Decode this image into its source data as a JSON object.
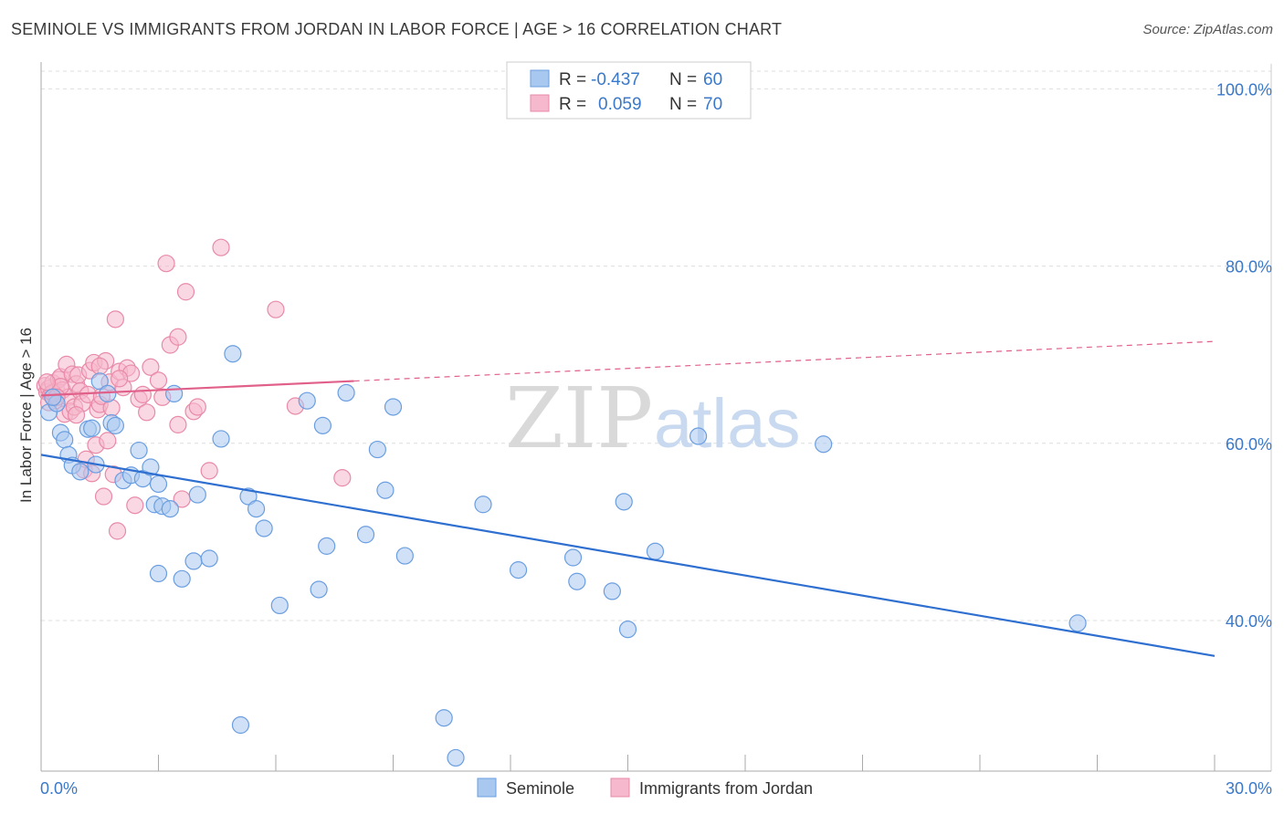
{
  "title": "SEMINOLE VS IMMIGRANTS FROM JORDAN IN LABOR FORCE | AGE > 16 CORRELATION CHART",
  "source": "Source: ZipAtlas.com",
  "watermark": {
    "zip": "ZIP",
    "atlas": "atlas"
  },
  "colors": {
    "blue_fill": "#a9c8f0",
    "blue_stroke": "#6a9ee0",
    "blue_line": "#2e6fd0",
    "pink_fill": "#f6b8cc",
    "pink_stroke": "#e88aa8",
    "pink_line": "#e0608a",
    "accent_text": "#3a78c9",
    "grid": "#dddddd"
  },
  "legend": {
    "rows": [
      {
        "r_label": "R =",
        "r_value": "-0.437",
        "n_label": "N =",
        "n_value": "60"
      },
      {
        "r_label": "R =",
        "r_value": "0.059",
        "n_label": "N =",
        "n_value": "70"
      }
    ]
  },
  "chart_data": {
    "type": "scatter",
    "title": "SEMINOLE VS IMMIGRANTS FROM JORDAN IN LABOR FORCE | AGE > 16 CORRELATION CHART",
    "xlabel": "",
    "ylabel": "In Labor Force | Age > 16",
    "xlim": [
      0,
      30
    ],
    "ylim": [
      23,
      102
    ],
    "x_tick_labels": [
      "0.0%",
      "30.0%"
    ],
    "y_ticks": [
      40,
      60,
      80,
      100
    ],
    "y_tick_labels": [
      "40.0%",
      "60.0%",
      "80.0%",
      "100.0%"
    ],
    "grid": true,
    "legend_position": "top-center",
    "series": [
      {
        "name": "Seminole",
        "color": "#a9c8f0",
        "trend": {
          "x": [
            0,
            30
          ],
          "y": [
            58.7,
            36.0
          ],
          "dashed_from": null
        },
        "points": [
          [
            0.2,
            63.5
          ],
          [
            0.4,
            64.5
          ],
          [
            0.5,
            61.2
          ],
          [
            0.6,
            60.4
          ],
          [
            0.7,
            58.7
          ],
          [
            0.8,
            57.5
          ],
          [
            1.0,
            56.8
          ],
          [
            1.2,
            61.6
          ],
          [
            1.3,
            61.7
          ],
          [
            1.4,
            57.6
          ],
          [
            1.5,
            67.0
          ],
          [
            1.7,
            65.6
          ],
          [
            1.8,
            62.3
          ],
          [
            1.9,
            62.0
          ],
          [
            2.1,
            55.8
          ],
          [
            2.3,
            56.4
          ],
          [
            2.5,
            59.2
          ],
          [
            2.6,
            56.0
          ],
          [
            2.8,
            57.3
          ],
          [
            2.9,
            53.1
          ],
          [
            3.0,
            45.3
          ],
          [
            3.0,
            55.4
          ],
          [
            3.1,
            52.9
          ],
          [
            3.3,
            52.6
          ],
          [
            3.4,
            65.6
          ],
          [
            3.6,
            44.7
          ],
          [
            3.9,
            46.7
          ],
          [
            4.0,
            54.2
          ],
          [
            4.3,
            47.0
          ],
          [
            4.6,
            60.5
          ],
          [
            4.9,
            70.1
          ],
          [
            5.1,
            28.2
          ],
          [
            5.3,
            54.0
          ],
          [
            5.5,
            52.6
          ],
          [
            5.7,
            50.4
          ],
          [
            6.1,
            41.7
          ],
          [
            6.8,
            64.8
          ],
          [
            7.1,
            43.5
          ],
          [
            7.2,
            62.0
          ],
          [
            7.3,
            48.4
          ],
          [
            7.8,
            65.7
          ],
          [
            8.3,
            49.7
          ],
          [
            8.6,
            59.3
          ],
          [
            8.8,
            54.7
          ],
          [
            9.0,
            64.1
          ],
          [
            9.3,
            47.3
          ],
          [
            10.3,
            29.0
          ],
          [
            10.6,
            24.5
          ],
          [
            11.3,
            53.1
          ],
          [
            12.2,
            45.7
          ],
          [
            13.6,
            47.1
          ],
          [
            13.7,
            44.4
          ],
          [
            14.6,
            43.3
          ],
          [
            14.9,
            53.4
          ],
          [
            15.0,
            39.0
          ],
          [
            15.7,
            47.8
          ],
          [
            16.8,
            60.8
          ],
          [
            20.0,
            59.9
          ],
          [
            26.5,
            39.7
          ],
          [
            0.3,
            65.2
          ]
        ]
      },
      {
        "name": "Immigrants from Jordan",
        "color": "#f6b8cc",
        "trend": {
          "x": [
            0,
            30
          ],
          "y": [
            65.4,
            71.5
          ],
          "dashed_from": 8.0
        },
        "points": [
          [
            0.1,
            66.5
          ],
          [
            0.15,
            65.8
          ],
          [
            0.2,
            66.2
          ],
          [
            0.25,
            65.5
          ],
          [
            0.3,
            66.8
          ],
          [
            0.35,
            64.8
          ],
          [
            0.4,
            65.9
          ],
          [
            0.45,
            67.2
          ],
          [
            0.5,
            67.5
          ],
          [
            0.55,
            66.0
          ],
          [
            0.6,
            63.3
          ],
          [
            0.65,
            68.9
          ],
          [
            0.7,
            65.2
          ],
          [
            0.75,
            63.6
          ],
          [
            0.8,
            67.8
          ],
          [
            0.85,
            64.1
          ],
          [
            0.9,
            66.7
          ],
          [
            0.95,
            67.7
          ],
          [
            1.0,
            65.9
          ],
          [
            1.05,
            64.5
          ],
          [
            1.1,
            57.0
          ],
          [
            1.15,
            58.2
          ],
          [
            1.2,
            65.5
          ],
          [
            1.25,
            68.2
          ],
          [
            1.3,
            56.6
          ],
          [
            1.35,
            69.1
          ],
          [
            1.4,
            59.8
          ],
          [
            1.45,
            63.8
          ],
          [
            1.5,
            64.4
          ],
          [
            1.55,
            65.3
          ],
          [
            1.6,
            54.0
          ],
          [
            1.65,
            69.3
          ],
          [
            1.7,
            60.3
          ],
          [
            1.75,
            66.9
          ],
          [
            1.8,
            64.0
          ],
          [
            1.85,
            56.5
          ],
          [
            1.9,
            74.0
          ],
          [
            1.95,
            50.1
          ],
          [
            2.0,
            68.1
          ],
          [
            2.1,
            66.3
          ],
          [
            2.2,
            68.5
          ],
          [
            2.3,
            67.9
          ],
          [
            2.4,
            53.0
          ],
          [
            2.5,
            65.0
          ],
          [
            2.6,
            65.5
          ],
          [
            2.7,
            63.5
          ],
          [
            2.8,
            68.6
          ],
          [
            3.0,
            67.1
          ],
          [
            3.1,
            65.2
          ],
          [
            3.2,
            80.3
          ],
          [
            3.3,
            71.1
          ],
          [
            3.5,
            62.1
          ],
          [
            3.5,
            72.0
          ],
          [
            3.6,
            53.7
          ],
          [
            3.7,
            77.1
          ],
          [
            3.9,
            63.6
          ],
          [
            4.0,
            64.1
          ],
          [
            4.3,
            56.9
          ],
          [
            4.6,
            82.1
          ],
          [
            6.0,
            75.1
          ],
          [
            6.5,
            64.2
          ],
          [
            7.7,
            56.1
          ],
          [
            0.2,
            64.6
          ],
          [
            0.3,
            65.7
          ],
          [
            0.5,
            66.4
          ],
          [
            0.9,
            63.2
          ],
          [
            1.5,
            68.7
          ],
          [
            2.0,
            67.3
          ],
          [
            0.15,
            66.9
          ],
          [
            0.4,
            65.2
          ]
        ]
      }
    ]
  },
  "bottom_legend": [
    {
      "label": "Seminole"
    },
    {
      "label": "Immigrants from Jordan"
    }
  ]
}
